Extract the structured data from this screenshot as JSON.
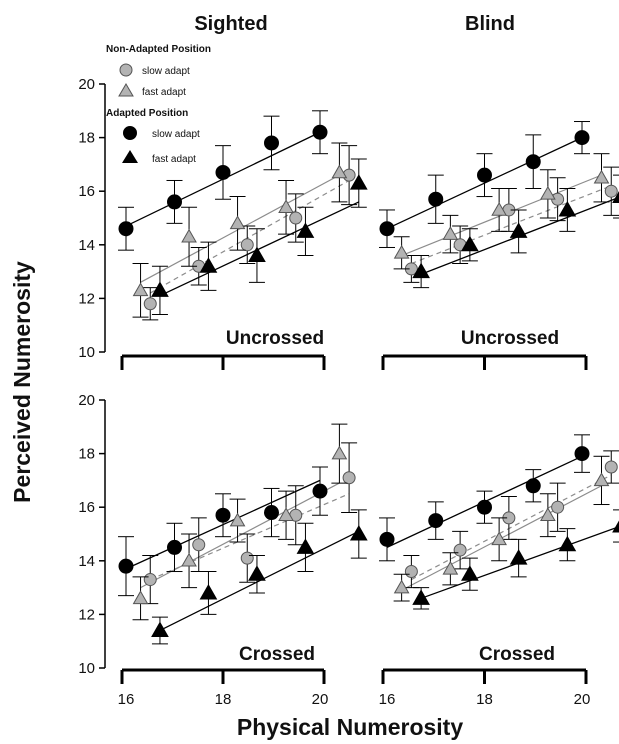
{
  "figure": {
    "y_axis_title": "Perceived Numerosity",
    "x_axis_title": "Physical Numerosity",
    "column_titles": [
      "Sighted",
      "Blind"
    ],
    "row_labels": [
      "Uncrossed",
      "Crossed"
    ],
    "colors": {
      "ink": "#000000",
      "gray_fill": "#b3b3b3",
      "gray_line": "#8c8c8c"
    }
  },
  "legend": {
    "header_non_adapted": "Non-Adapted Position",
    "header_adapted": "Adapted Position",
    "items": [
      {
        "label": "slow adapt",
        "marker": "circle",
        "fill": "gray"
      },
      {
        "label": "fast adapt",
        "marker": "triangle",
        "fill": "gray"
      },
      {
        "label": "slow adapt",
        "marker": "circle",
        "fill": "black"
      },
      {
        "label": "fast adapt",
        "marker": "triangle",
        "fill": "black"
      }
    ]
  },
  "chart_data": [
    {
      "type": "scatter",
      "panel": "Sighted",
      "condition": "Uncrossed",
      "title": "Sighted",
      "xlim": [
        15.5,
        21
      ],
      "ylim": [
        10,
        20
      ],
      "yticks": [
        "10",
        "12",
        "14",
        "16",
        "18",
        "20"
      ],
      "yticks_values": [
        10,
        12,
        14,
        16,
        18,
        20
      ],
      "series": [
        {
          "name": "Non-Adapted slow adapt",
          "marker": "circle",
          "fill": "gray",
          "x": [
            16.5,
            17.5,
            18.5,
            19.5,
            20.6
          ],
          "y": [
            11.8,
            13.2,
            14.0,
            15.0,
            16.6
          ],
          "err": [
            0.6,
            0.7,
            0.7,
            0.9,
            1.1
          ]
        },
        {
          "name": "Non-Adapted fast adapt",
          "marker": "triangle",
          "fill": "gray",
          "x": [
            16.3,
            17.3,
            18.3,
            19.3,
            20.4
          ],
          "y": [
            12.3,
            14.3,
            14.8,
            15.4,
            16.7
          ],
          "err": [
            1.0,
            1.1,
            1.0,
            1.0,
            1.1
          ]
        },
        {
          "name": "Adapted slow adapt",
          "marker": "circle",
          "fill": "black",
          "x": [
            16.0,
            17.0,
            18.0,
            19.0,
            20.0
          ],
          "y": [
            14.6,
            15.6,
            16.7,
            17.8,
            18.2
          ],
          "err": [
            0.8,
            0.8,
            1.0,
            1.0,
            0.8
          ]
        },
        {
          "name": "Adapted fast adapt",
          "marker": "triangle",
          "fill": "black",
          "x": [
            16.7,
            17.7,
            18.7,
            19.7,
            20.8
          ],
          "y": [
            12.3,
            13.2,
            13.6,
            14.5,
            16.3
          ],
          "err": [
            0.9,
            0.9,
            1.0,
            0.9,
            0.9
          ]
        }
      ],
      "fits": [
        {
          "series": "Non-Adapted slow adapt",
          "style": "dashed",
          "x": [
            16.5,
            20.6
          ],
          "y": [
            12.2,
            16.4
          ]
        },
        {
          "series": "Non-Adapted fast adapt",
          "style": "solid-gray",
          "x": [
            16.3,
            20.4
          ],
          "y": [
            12.6,
            16.6
          ]
        },
        {
          "series": "Adapted slow adapt",
          "style": "solid",
          "x": [
            16.0,
            20.0
          ],
          "y": [
            14.7,
            18.2
          ]
        },
        {
          "series": "Adapted fast adapt",
          "style": "solid",
          "x": [
            16.7,
            20.8
          ],
          "y": [
            12.1,
            15.6
          ]
        }
      ]
    },
    {
      "type": "scatter",
      "panel": "Blind",
      "condition": "Uncrossed",
      "title": "Blind",
      "xlim": [
        15.5,
        21
      ],
      "ylim": [
        10,
        20
      ],
      "series": [
        {
          "name": "Non-Adapted slow adapt",
          "marker": "circle",
          "fill": "gray",
          "x": [
            16.5,
            17.5,
            18.5,
            19.5,
            20.6
          ],
          "y": [
            13.1,
            14.0,
            15.3,
            15.7,
            16.0
          ],
          "err": [
            0.5,
            0.7,
            0.8,
            0.8,
            0.9
          ]
        },
        {
          "name": "Non-Adapted fast adapt",
          "marker": "triangle",
          "fill": "gray",
          "x": [
            16.3,
            17.3,
            18.3,
            19.3,
            20.4
          ],
          "y": [
            13.7,
            14.4,
            15.3,
            15.9,
            16.5
          ],
          "err": [
            0.6,
            0.7,
            0.8,
            0.9,
            0.9
          ]
        },
        {
          "name": "Adapted slow adapt",
          "marker": "circle",
          "fill": "black",
          "x": [
            16.0,
            17.0,
            18.0,
            19.0,
            20.0
          ],
          "y": [
            14.6,
            15.7,
            16.6,
            17.1,
            18.0
          ],
          "err": [
            0.7,
            0.9,
            0.8,
            1.0,
            0.6
          ]
        },
        {
          "name": "Adapted fast adapt",
          "marker": "triangle",
          "fill": "black",
          "x": [
            16.7,
            17.7,
            18.7,
            19.7,
            20.8
          ],
          "y": [
            13.0,
            14.0,
            14.5,
            15.3,
            15.8
          ],
          "err": [
            0.6,
            0.6,
            0.8,
            0.8,
            0.8
          ]
        }
      ],
      "fits": [
        {
          "series": "Non-Adapted slow adapt",
          "style": "dashed",
          "x": [
            16.5,
            20.6
          ],
          "y": [
            13.3,
            16.2
          ]
        },
        {
          "series": "Non-Adapted fast adapt",
          "style": "solid-gray",
          "x": [
            16.3,
            20.4
          ],
          "y": [
            13.6,
            16.6
          ]
        },
        {
          "series": "Adapted slow adapt",
          "style": "solid",
          "x": [
            16.0,
            20.0
          ],
          "y": [
            14.6,
            18.0
          ]
        },
        {
          "series": "Adapted fast adapt",
          "style": "solid",
          "x": [
            16.7,
            20.8
          ],
          "y": [
            12.9,
            15.8
          ]
        }
      ]
    },
    {
      "type": "scatter",
      "panel": "Sighted",
      "condition": "Crossed",
      "xlim": [
        15.5,
        21
      ],
      "ylim": [
        10,
        20
      ],
      "yticks": [
        "10",
        "12",
        "14",
        "16",
        "18",
        "20"
      ],
      "yticks_values": [
        10,
        12,
        14,
        16,
        18,
        20
      ],
      "xticks": [
        "16",
        "18",
        "20"
      ],
      "xticks_values": [
        16,
        18,
        20
      ],
      "series": [
        {
          "name": "Non-Adapted slow adapt",
          "marker": "circle",
          "fill": "gray",
          "x": [
            16.5,
            17.5,
            18.5,
            19.5,
            20.6
          ],
          "y": [
            13.3,
            14.6,
            14.1,
            15.7,
            17.1
          ],
          "err": [
            0.9,
            1.0,
            0.9,
            1.1,
            1.3
          ]
        },
        {
          "name": "Non-Adapted fast adapt",
          "marker": "triangle",
          "fill": "gray",
          "x": [
            16.3,
            17.3,
            18.3,
            19.3,
            20.4
          ],
          "y": [
            12.6,
            14.0,
            15.5,
            15.7,
            18.0
          ],
          "err": [
            0.8,
            1.0,
            0.8,
            0.9,
            1.1
          ]
        },
        {
          "name": "Adapted slow adapt",
          "marker": "circle",
          "fill": "black",
          "x": [
            16.0,
            17.0,
            18.0,
            19.0,
            20.0
          ],
          "y": [
            13.8,
            14.5,
            15.7,
            15.8,
            16.6
          ],
          "err": [
            1.1,
            0.9,
            0.8,
            0.9,
            0.9
          ]
        },
        {
          "name": "Adapted fast adapt",
          "marker": "triangle",
          "fill": "black",
          "x": [
            16.7,
            17.7,
            18.7,
            19.7,
            20.8
          ],
          "y": [
            11.4,
            12.8,
            13.5,
            14.5,
            15.0
          ],
          "err": [
            0.5,
            0.8,
            0.7,
            0.9,
            0.9
          ]
        }
      ],
      "fits": [
        {
          "series": "Non-Adapted slow adapt",
          "style": "dashed",
          "x": [
            16.5,
            20.6
          ],
          "y": [
            13.3,
            16.5
          ]
        },
        {
          "series": "Non-Adapted fast adapt",
          "style": "solid-gray",
          "x": [
            16.3,
            20.4
          ],
          "y": [
            13.0,
            16.9
          ]
        },
        {
          "series": "Adapted slow adapt",
          "style": "solid",
          "x": [
            16.0,
            20.0
          ],
          "y": [
            13.7,
            17.0
          ]
        },
        {
          "series": "Adapted fast adapt",
          "style": "solid",
          "x": [
            16.7,
            20.8
          ],
          "y": [
            11.4,
            15.1
          ]
        }
      ]
    },
    {
      "type": "scatter",
      "panel": "Blind",
      "condition": "Crossed",
      "xlim": [
        15.5,
        21
      ],
      "ylim": [
        10,
        20
      ],
      "xticks": [
        "16",
        "18",
        "20"
      ],
      "xticks_values": [
        16,
        18,
        20
      ],
      "series": [
        {
          "name": "Non-Adapted slow adapt",
          "marker": "circle",
          "fill": "gray",
          "x": [
            16.5,
            17.5,
            18.5,
            19.5,
            20.6
          ],
          "y": [
            13.6,
            14.4,
            15.6,
            16.0,
            17.5
          ],
          "err": [
            0.6,
            0.7,
            0.8,
            0.9,
            0.6
          ]
        },
        {
          "name": "Non-Adapted fast adapt",
          "marker": "triangle",
          "fill": "gray",
          "x": [
            16.3,
            17.3,
            18.3,
            19.3,
            20.4
          ],
          "y": [
            13.0,
            13.7,
            14.8,
            15.7,
            17.0
          ],
          "err": [
            0.5,
            0.6,
            0.8,
            0.8,
            0.9
          ]
        },
        {
          "name": "Adapted slow adapt",
          "marker": "circle",
          "fill": "black",
          "x": [
            16.0,
            17.0,
            18.0,
            19.0,
            20.0
          ],
          "y": [
            14.8,
            15.5,
            16.0,
            16.8,
            18.0
          ],
          "err": [
            0.8,
            0.7,
            0.6,
            0.6,
            0.7
          ]
        },
        {
          "name": "Adapted fast adapt",
          "marker": "triangle",
          "fill": "black",
          "x": [
            16.7,
            17.7,
            18.7,
            19.7,
            20.8
          ],
          "y": [
            12.6,
            13.5,
            14.1,
            14.6,
            15.3
          ],
          "err": [
            0.4,
            0.6,
            0.7,
            0.6,
            0.6
          ]
        }
      ],
      "fits": [
        {
          "series": "Non-Adapted slow adapt",
          "style": "dashed",
          "x": [
            16.5,
            20.6
          ],
          "y": [
            13.3,
            17.2
          ]
        },
        {
          "series": "Non-Adapted fast adapt",
          "style": "solid-gray",
          "x": [
            16.3,
            20.4
          ],
          "y": [
            12.9,
            16.8
          ]
        },
        {
          "series": "Adapted slow adapt",
          "style": "solid",
          "x": [
            16.0,
            20.0
          ],
          "y": [
            14.5,
            17.9
          ]
        },
        {
          "series": "Adapted fast adapt",
          "style": "solid",
          "x": [
            16.7,
            20.8
          ],
          "y": [
            12.6,
            15.3
          ]
        }
      ]
    }
  ]
}
